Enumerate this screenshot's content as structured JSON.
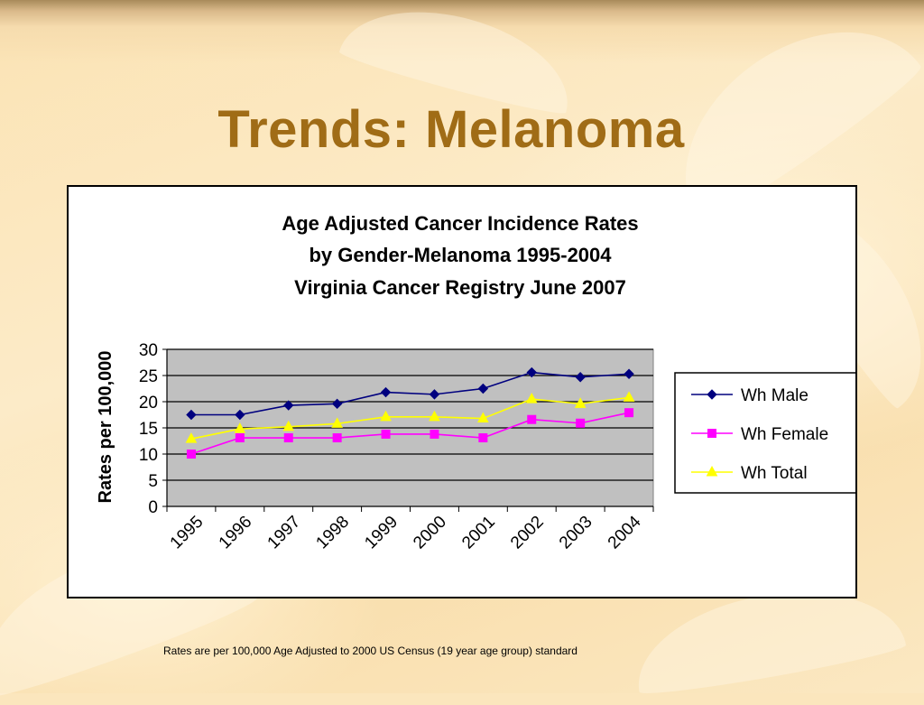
{
  "slide": {
    "title": "Trends: Melanoma",
    "footnote": "Rates are per 100,000 Age Adjusted to 2000 US Census (19 year age group) standard"
  },
  "chart_data": {
    "type": "line",
    "title_lines": [
      "Age Adjusted Cancer Incidence Rates",
      "by Gender-Melanoma 1995-2004",
      "Virginia Cancer Registry June 2007"
    ],
    "xlabel": "",
    "ylabel": "Rates per 100,000",
    "categories": [
      "1995",
      "1996",
      "1997",
      "1998",
      "1999",
      "2000",
      "2001",
      "2002",
      "2003",
      "2004"
    ],
    "yticks": [
      "0",
      "5",
      "10",
      "15",
      "20",
      "25",
      "30"
    ],
    "ylim": [
      0,
      30
    ],
    "grid": true,
    "legend_position": "right",
    "series": [
      {
        "name": "Wh Male",
        "color": "#00007f",
        "marker": "diamond",
        "values": [
          17.5,
          17.5,
          19.3,
          19.6,
          21.8,
          21.4,
          22.5,
          25.6,
          24.7,
          25.3
        ]
      },
      {
        "name": "Wh Female",
        "color": "#ff00ff",
        "marker": "square",
        "values": [
          10.0,
          13.1,
          13.1,
          13.1,
          13.8,
          13.8,
          13.1,
          16.6,
          15.9,
          17.9
        ]
      },
      {
        "name": "Wh Total",
        "color": "#ffff00",
        "marker": "triangle",
        "values": [
          12.9,
          14.8,
          15.2,
          15.8,
          17.1,
          17.1,
          16.8,
          20.5,
          19.6,
          20.8
        ]
      }
    ]
  }
}
